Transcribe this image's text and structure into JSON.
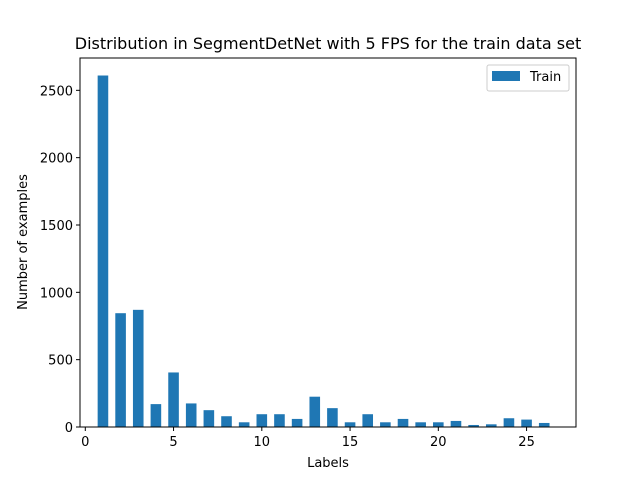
{
  "chart_data": {
    "type": "bar",
    "title": "Distribution in SegmentDetNet with 5 FPS for the train data set",
    "xlabel": "Labels",
    "ylabel": "Number of examples",
    "xlim": [
      -0.3,
      27.8
    ],
    "ylim": [
      0,
      2740
    ],
    "xticks": [
      0,
      5,
      10,
      15,
      20,
      25
    ],
    "yticks": [
      0,
      500,
      1000,
      1500,
      2000,
      2500
    ],
    "grid": false,
    "legend": "top-right",
    "bar_width": 0.6,
    "color": "#1f77b4",
    "series": [
      {
        "name": "Train",
        "x": [
          1,
          2,
          3,
          4,
          5,
          6,
          7,
          8,
          9,
          10,
          11,
          12,
          13,
          14,
          15,
          16,
          17,
          18,
          19,
          20,
          21,
          22,
          23,
          24,
          25,
          26
        ],
        "values": [
          2610,
          845,
          870,
          170,
          405,
          175,
          125,
          80,
          35,
          95,
          95,
          60,
          225,
          140,
          35,
          95,
          35,
          60,
          35,
          35,
          45,
          15,
          20,
          65,
          55,
          30
        ]
      }
    ]
  }
}
